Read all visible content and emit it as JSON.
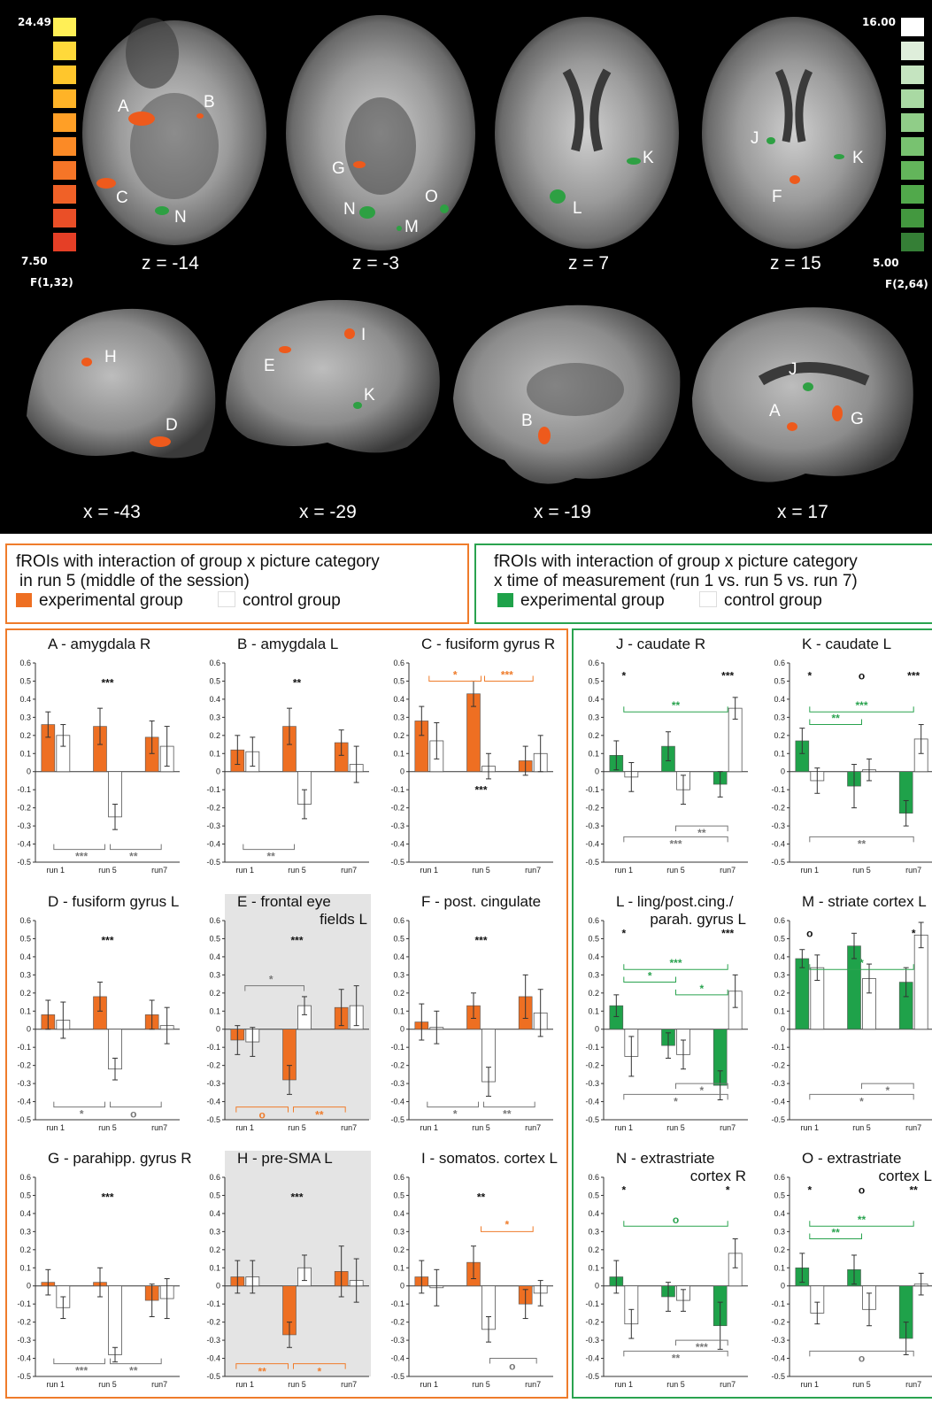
{
  "colors": {
    "experimental_A": "#ee6f22",
    "experimental_B": "#1fa24a",
    "control": "#ffffff",
    "frame_A": "#ef7c2b",
    "frame_B": "#2aa34f"
  },
  "colorbar_left": {
    "max": "24.49",
    "min": "7.50",
    "stat": "F(1,32)",
    "swatches": [
      "#ffef56",
      "#ffd93a",
      "#ffc62c",
      "#ffb327",
      "#ff9f26",
      "#fb8a26",
      "#f67527",
      "#f06127",
      "#ea4f27",
      "#e53f26"
    ]
  },
  "colorbar_right": {
    "max": "16.00",
    "min": "5.00",
    "stat": "F(2,64)",
    "swatches": [
      "#ffffff",
      "#dfeedb",
      "#c5e4c0",
      "#a9d9a3",
      "#90cd88",
      "#78c270",
      "#63b55b",
      "#51a94b",
      "#43983f",
      "#357f36"
    ]
  },
  "axial_slices": [
    "z = -14",
    "z = -3",
    "z = 7",
    "z = 15"
  ],
  "sagittal_slices": [
    "x = -43",
    "x = -29",
    "x = -19",
    "x = 17"
  ],
  "roi_labels": [
    "A",
    "B",
    "C",
    "N",
    "G",
    "N",
    "O",
    "M",
    "K",
    "L",
    "J",
    "K",
    "F",
    "H",
    "D",
    "E",
    "I",
    "K",
    "B",
    "J",
    "A",
    "G"
  ],
  "legend_A": {
    "title": "fROIs with interaction of group x picture category",
    "subtitle": "in run 5 (middle of the session)",
    "experimental": "experimental group",
    "control": "control group"
  },
  "legend_B": {
    "title": "fROIs with interaction of group x picture category",
    "subtitle": "x time of measurement (run 1 vs. run 5 vs. run 7)",
    "experimental": "experimental group",
    "control": "control group"
  },
  "chart_data": [
    {
      "id": "A",
      "title": [
        "A - amygdala R"
      ],
      "type": "bar",
      "group": "A",
      "categories": [
        "run 1",
        "run 5",
        "run7"
      ],
      "ylim": [
        -0.5,
        0.6
      ],
      "series": [
        {
          "name": "experimental group",
          "values": [
            0.26,
            0.25,
            0.19
          ]
        },
        {
          "name": "control group",
          "values": [
            0.2,
            -0.25,
            0.14
          ]
        }
      ],
      "error": [
        [
          0.07,
          0.1,
          0.09
        ],
        [
          0.06,
          0.07,
          0.11
        ]
      ],
      "top_stars": [
        {
          "x": "run 5",
          "text": "***"
        }
      ],
      "bottom_stars": [
        "***",
        "**"
      ]
    },
    {
      "id": "B",
      "title": [
        "B - amygdala L"
      ],
      "type": "bar",
      "group": "A",
      "categories": [
        "run 1",
        "run 5",
        "run7"
      ],
      "ylim": [
        -0.5,
        0.6
      ],
      "series": [
        {
          "name": "experimental group",
          "values": [
            0.12,
            0.25,
            0.16
          ]
        },
        {
          "name": "control group",
          "values": [
            0.11,
            -0.18,
            0.04
          ]
        }
      ],
      "error": [
        [
          0.08,
          0.1,
          0.07
        ],
        [
          0.08,
          0.08,
          0.1
        ]
      ],
      "top_stars": [
        {
          "x": "run 5",
          "text": "**"
        }
      ],
      "bottom_stars": [
        "**",
        ""
      ]
    },
    {
      "id": "C",
      "title": [
        "C - fusiform gyrus R"
      ],
      "type": "bar",
      "group": "A",
      "categories": [
        "run 1",
        "run 5",
        "run7"
      ],
      "ylim": [
        -0.5,
        0.6
      ],
      "series": [
        {
          "name": "experimental group",
          "values": [
            0.28,
            0.43,
            0.06
          ]
        },
        {
          "name": "control group",
          "values": [
            0.17,
            0.03,
            0.1
          ]
        }
      ],
      "error": [
        [
          0.08,
          0.07,
          0.08
        ],
        [
          0.1,
          0.07,
          0.1
        ]
      ],
      "top_stars": [],
      "mid_stars": [
        {
          "x": "run 5",
          "text": "***",
          "y": -0.12
        }
      ],
      "top_brackets": [
        {
          "label": "*"
        },
        {
          "label": "***"
        }
      ],
      "bottom_stars": []
    },
    {
      "id": "D",
      "title": [
        "D - fusiform gyrus L"
      ],
      "type": "bar",
      "group": "A",
      "categories": [
        "run 1",
        "run 5",
        "run7"
      ],
      "ylim": [
        -0.5,
        0.6
      ],
      "series": [
        {
          "name": "experimental group",
          "values": [
            0.08,
            0.18,
            0.08
          ]
        },
        {
          "name": "control group",
          "values": [
            0.05,
            -0.22,
            0.02
          ]
        }
      ],
      "error": [
        [
          0.08,
          0.08,
          0.08
        ],
        [
          0.1,
          0.06,
          0.1
        ]
      ],
      "top_stars": [
        {
          "x": "run 5",
          "text": "***"
        }
      ],
      "bottom_stars": [
        "*",
        "o"
      ]
    },
    {
      "id": "E",
      "title": [
        "E - frontal eye",
        "fields L"
      ],
      "type": "bar",
      "group": "A",
      "shaded": true,
      "categories": [
        "run 1",
        "run 5",
        "run7"
      ],
      "ylim": [
        -0.5,
        0.6
      ],
      "series": [
        {
          "name": "experimental group",
          "values": [
            -0.06,
            -0.28,
            0.12
          ]
        },
        {
          "name": "control group",
          "values": [
            -0.07,
            0.13,
            0.13
          ]
        }
      ],
      "error": [
        [
          0.08,
          0.08,
          0.1
        ],
        [
          0.08,
          0.05,
          0.11
        ]
      ],
      "top_stars": [
        {
          "x": "run 5",
          "text": "***"
        }
      ],
      "star_bracket": "*",
      "orange_bottom": [
        "o",
        "**"
      ],
      "bottom_stars": []
    },
    {
      "id": "F",
      "title": [
        "F - post. cingulate"
      ],
      "type": "bar",
      "group": "A",
      "categories": [
        "run 1",
        "run 5",
        "run7"
      ],
      "ylim": [
        -0.5,
        0.6
      ],
      "series": [
        {
          "name": "experimental group",
          "values": [
            0.04,
            0.13,
            0.18
          ]
        },
        {
          "name": "control group",
          "values": [
            0.01,
            -0.29,
            0.09
          ]
        }
      ],
      "error": [
        [
          0.1,
          0.07,
          0.12
        ],
        [
          0.09,
          0.08,
          0.13
        ]
      ],
      "top_stars": [
        {
          "x": "run 5",
          "text": "***"
        }
      ],
      "bottom_stars": [
        "*",
        "**"
      ]
    },
    {
      "id": "G",
      "title": [
        "G - parahipp. gyrus R"
      ],
      "type": "bar",
      "group": "A",
      "categories": [
        "run 1",
        "run 5",
        "run7"
      ],
      "ylim": [
        -0.5,
        0.6
      ],
      "series": [
        {
          "name": "experimental group",
          "values": [
            0.02,
            0.02,
            -0.08
          ]
        },
        {
          "name": "control group",
          "values": [
            -0.12,
            -0.38,
            -0.07
          ]
        }
      ],
      "error": [
        [
          0.07,
          0.08,
          0.09
        ],
        [
          0.06,
          0.04,
          0.11
        ]
      ],
      "top_stars": [
        {
          "x": "run 5",
          "text": "***"
        }
      ],
      "bottom_stars": [
        "***",
        "**"
      ]
    },
    {
      "id": "H",
      "title": [
        "H - pre-SMA L"
      ],
      "type": "bar",
      "group": "A",
      "shaded": true,
      "categories": [
        "run 1",
        "run 5",
        "run7"
      ],
      "ylim": [
        -0.5,
        0.6
      ],
      "series": [
        {
          "name": "experimental group",
          "values": [
            0.05,
            -0.27,
            0.08
          ]
        },
        {
          "name": "control group",
          "values": [
            0.05,
            0.1,
            0.03
          ]
        }
      ],
      "error": [
        [
          0.09,
          0.07,
          0.14
        ],
        [
          0.09,
          0.07,
          0.12
        ]
      ],
      "top_stars": [
        {
          "x": "run 5",
          "text": "***"
        }
      ],
      "orange_bottom": [
        "**",
        "*"
      ],
      "bottom_stars": []
    },
    {
      "id": "I",
      "title": [
        "I - somatos. cortex L"
      ],
      "type": "bar",
      "group": "A",
      "categories": [
        "run 1",
        "run 5",
        "run7"
      ],
      "ylim": [
        -0.5,
        0.6
      ],
      "series": [
        {
          "name": "experimental group",
          "values": [
            0.05,
            0.13,
            -0.1
          ]
        },
        {
          "name": "control group",
          "values": [
            -0.01,
            -0.24,
            -0.04
          ]
        }
      ],
      "error": [
        [
          0.09,
          0.09,
          0.08
        ],
        [
          0.1,
          0.07,
          0.07
        ]
      ],
      "top_stars": [
        {
          "x": "run 5",
          "text": "**"
        }
      ],
      "orange_top": "*",
      "gray_right": "o",
      "bottom_stars": []
    },
    {
      "id": "J",
      "title": [
        "J - caudate R"
      ],
      "type": "bar",
      "group": "B",
      "categories": [
        "run 1",
        "run 5",
        "run7"
      ],
      "ylim": [
        -0.5,
        0.6
      ],
      "series": [
        {
          "name": "experimental group",
          "values": [
            0.09,
            0.14,
            -0.07
          ]
        },
        {
          "name": "control group",
          "values": [
            -0.03,
            -0.1,
            0.35
          ]
        }
      ],
      "error": [
        [
          0.08,
          0.08,
          0.07
        ],
        [
          0.08,
          0.08,
          0.06
        ]
      ],
      "marks": [
        "*",
        "***"
      ],
      "green_brackets": [
        "**"
      ],
      "gray_brackets": [
        "***",
        "**"
      ]
    },
    {
      "id": "K",
      "title": [
        "K - caudate L"
      ],
      "type": "bar",
      "group": "B",
      "categories": [
        "run 1",
        "run 5",
        "run7"
      ],
      "ylim": [
        -0.5,
        0.6
      ],
      "series": [
        {
          "name": "experimental group",
          "values": [
            0.17,
            -0.08,
            -0.23
          ]
        },
        {
          "name": "control group",
          "values": [
            -0.05,
            0.01,
            0.18
          ]
        }
      ],
      "error": [
        [
          0.07,
          0.12,
          0.07
        ],
        [
          0.07,
          0.06,
          0.08
        ]
      ],
      "marks": [
        "*",
        "o",
        "***"
      ],
      "green_brackets": [
        "***",
        "**"
      ],
      "gray_brackets": [
        "**"
      ]
    },
    {
      "id": "L",
      "title": [
        "L - ling/post.cing./",
        "parah. gyrus  L"
      ],
      "type": "bar",
      "group": "B",
      "categories": [
        "run 1",
        "run 5",
        "run7"
      ],
      "ylim": [
        -0.5,
        0.6
      ],
      "series": [
        {
          "name": "experimental group",
          "values": [
            0.13,
            -0.09,
            -0.31
          ]
        },
        {
          "name": "control group",
          "values": [
            -0.15,
            -0.14,
            0.21
          ]
        }
      ],
      "error": [
        [
          0.06,
          0.07,
          0.08
        ],
        [
          0.11,
          0.08,
          0.09
        ]
      ],
      "marks": [
        "*",
        "***"
      ],
      "green_brackets": [
        "***",
        "*",
        "*"
      ],
      "gray_brackets": [
        "*",
        "*"
      ]
    },
    {
      "id": "M",
      "title": [
        "M - striate cortex L"
      ],
      "type": "bar",
      "group": "B",
      "categories": [
        "run 1",
        "run 5",
        "run7"
      ],
      "ylim": [
        -0.5,
        0.6
      ],
      "series": [
        {
          "name": "experimental group",
          "values": [
            0.39,
            0.46,
            0.26
          ]
        },
        {
          "name": "control group",
          "values": [
            0.34,
            0.28,
            0.52
          ]
        }
      ],
      "error": [
        [
          0.05,
          0.07,
          0.08
        ],
        [
          0.07,
          0.08,
          0.07
        ]
      ],
      "marks": [
        "o",
        "*"
      ],
      "green_brackets": [
        "*"
      ],
      "gray_brackets": [
        "*",
        "*"
      ]
    },
    {
      "id": "N",
      "title": [
        "N - extrastriate",
        "cortex R"
      ],
      "type": "bar",
      "group": "B",
      "categories": [
        "run 1",
        "run 5",
        "run7"
      ],
      "ylim": [
        -0.5,
        0.6
      ],
      "series": [
        {
          "name": "experimental group",
          "values": [
            0.05,
            -0.06,
            -0.22
          ]
        },
        {
          "name": "control group",
          "values": [
            -0.21,
            -0.08,
            0.18
          ]
        }
      ],
      "error": [
        [
          0.09,
          0.08,
          0.13
        ],
        [
          0.08,
          0.06,
          0.08
        ]
      ],
      "marks": [
        "*",
        "*"
      ],
      "green_brackets": [
        "o"
      ],
      "gray_brackets": [
        "**",
        "***"
      ]
    },
    {
      "id": "O",
      "title": [
        "O - extrastriate",
        "cortex L"
      ],
      "type": "bar",
      "group": "B",
      "categories": [
        "run 1",
        "run 5",
        "run7"
      ],
      "ylim": [
        -0.5,
        0.6
      ],
      "series": [
        {
          "name": "experimental group",
          "values": [
            0.1,
            0.09,
            -0.29
          ]
        },
        {
          "name": "control group",
          "values": [
            -0.15,
            -0.13,
            0.01
          ]
        }
      ],
      "error": [
        [
          0.08,
          0.08,
          0.09
        ],
        [
          0.06,
          0.09,
          0.06
        ]
      ],
      "marks": [
        "*",
        "o",
        "**"
      ],
      "green_brackets": [
        "**",
        "**"
      ],
      "gray_brackets": [
        "o"
      ]
    }
  ]
}
